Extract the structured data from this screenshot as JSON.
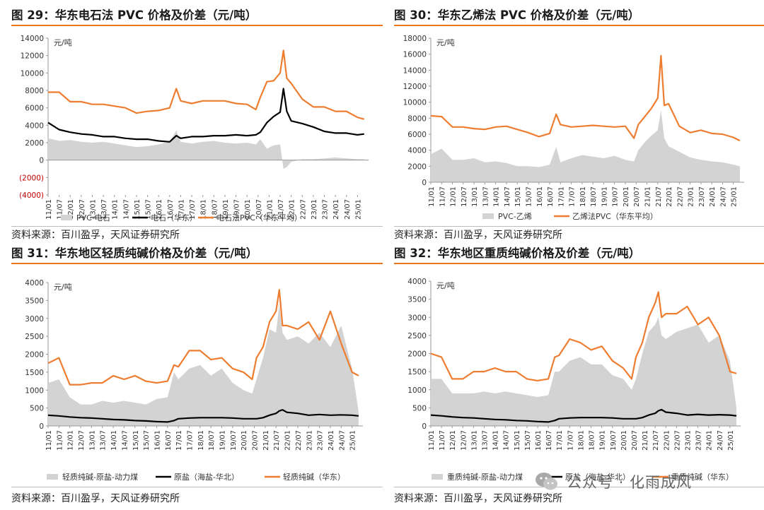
{
  "source_text": "资料来源：百川盈孚，天风证券研究所",
  "watermark": "公众号 · 化雨成风",
  "colors": {
    "orange": "#ED7D31",
    "black": "#000000",
    "gray": "#D3D3D3",
    "negative": "#C00000"
  },
  "chart_data": [
    {
      "type": "area+line",
      "title": "图 29：华东电石法 PVC 价格及价差（元/吨）",
      "unit_label": "元/吨",
      "ylim": [
        -4000,
        14000
      ],
      "yticks": [
        14000,
        12000,
        10000,
        8000,
        6000,
        4000,
        2000,
        0,
        -2000,
        -4000
      ],
      "ytick_labels": [
        "14000",
        "12000",
        "10000",
        "8000",
        "6000",
        "4000",
        "2000",
        "0",
        "(2000)",
        "(4000)"
      ],
      "x_ticks": [
        "11/01",
        "11/07",
        "12/01",
        "12/07",
        "13/01",
        "13/07",
        "14/01",
        "14/07",
        "15/01",
        "15/07",
        "16/01",
        "16/07",
        "17/01",
        "17/07",
        "18/01",
        "18/07",
        "19/01",
        "19/07",
        "20/01",
        "20/07",
        "21/01",
        "21/07",
        "22/01",
        "22/07",
        "23/01",
        "23/07",
        "24/01",
        "24/07",
        "25/01"
      ],
      "x": [
        2011.0,
        2011.5,
        2012.0,
        2012.5,
        2013.0,
        2013.5,
        2014.0,
        2014.5,
        2015.0,
        2015.5,
        2016.0,
        2016.5,
        2016.8,
        2017.0,
        2017.5,
        2018.0,
        2018.5,
        2019.0,
        2019.5,
        2020.0,
        2020.4,
        2020.6,
        2020.9,
        2021.2,
        2021.5,
        2021.65,
        2021.8,
        2022.0,
        2022.5,
        2023.0,
        2023.5,
        2024.0,
        2024.5,
        2025.0,
        2025.3
      ],
      "series": [
        {
          "name": "PVC-电石",
          "kind": "area",
          "values": [
            2500,
            2200,
            2300,
            2100,
            2000,
            2100,
            1900,
            1700,
            1500,
            1600,
            1800,
            2100,
            3400,
            2100,
            1900,
            2100,
            2200,
            2000,
            1900,
            2000,
            1800,
            2400,
            1300,
            1700,
            1800,
            -1000,
            -800,
            -200,
            100,
            100,
            200,
            300,
            200,
            100,
            100
          ]
        },
        {
          "name": "电石（华东）",
          "kind": "line",
          "values": [
            4300,
            3500,
            3200,
            3000,
            2900,
            2700,
            2700,
            2500,
            2400,
            2400,
            2200,
            2100,
            2800,
            2500,
            2700,
            2700,
            2800,
            2800,
            2900,
            2800,
            2900,
            3200,
            4300,
            5000,
            5500,
            8200,
            5600,
            4500,
            4200,
            3800,
            3300,
            3100,
            3100,
            2900,
            3000
          ]
        },
        {
          "name": "电石法PVC（华东平均）",
          "kind": "line",
          "values": [
            7800,
            7800,
            6700,
            6700,
            6400,
            6400,
            6200,
            6000,
            5400,
            5600,
            5700,
            6000,
            8200,
            6800,
            6500,
            6800,
            6800,
            6800,
            6500,
            6400,
            5800,
            7200,
            9000,
            9100,
            10000,
            12600,
            9400,
            8800,
            7000,
            6100,
            6100,
            5600,
            5600,
            4900,
            4700
          ]
        }
      ]
    },
    {
      "type": "area+line",
      "title": "图 30：华东乙烯法 PVC 价格及价差（元/吨）",
      "unit_label": "元/吨",
      "ylim": [
        0,
        18000
      ],
      "yticks": [
        18000,
        16000,
        14000,
        12000,
        10000,
        8000,
        6000,
        4000,
        2000,
        0
      ],
      "ytick_labels": [
        "18000",
        "16000",
        "14000",
        "12000",
        "10000",
        "8000",
        "6000",
        "4000",
        "2000",
        "0"
      ],
      "x_ticks": [
        "11/01",
        "11/07",
        "12/01",
        "12/07",
        "13/01",
        "13/07",
        "14/01",
        "14/07",
        "15/01",
        "15/07",
        "16/01",
        "16/07",
        "17/01",
        "17/07",
        "18/01",
        "18/07",
        "19/01",
        "19/07",
        "20/01",
        "20/07",
        "21/01",
        "21/07",
        "22/01",
        "22/07",
        "23/01",
        "23/07",
        "24/01",
        "24/07",
        "25/01"
      ],
      "x": [
        2011.0,
        2011.5,
        2012.0,
        2012.5,
        2013.0,
        2013.5,
        2014.0,
        2014.5,
        2015.0,
        2015.5,
        2016.0,
        2016.5,
        2016.8,
        2017.0,
        2017.5,
        2018.0,
        2018.5,
        2019.0,
        2019.5,
        2020.0,
        2020.4,
        2020.6,
        2020.9,
        2021.2,
        2021.5,
        2021.65,
        2021.8,
        2022.0,
        2022.5,
        2023.0,
        2023.5,
        2024.0,
        2024.5,
        2025.0,
        2025.3
      ],
      "series": [
        {
          "name": "PVC-乙烯",
          "kind": "area",
          "values": [
            3500,
            4200,
            2800,
            2800,
            3000,
            2500,
            2600,
            2400,
            2000,
            2000,
            1900,
            2200,
            4400,
            2500,
            3000,
            3400,
            3200,
            3000,
            3300,
            2800,
            2600,
            4000,
            5000,
            5800,
            6500,
            9000,
            5500,
            4500,
            3800,
            3100,
            2800,
            2600,
            2500,
            2200,
            2000
          ]
        },
        {
          "name": "乙烯法PVC（华东平均）",
          "kind": "line",
          "values": [
            8300,
            8200,
            6900,
            6900,
            6700,
            6600,
            6900,
            7000,
            6600,
            6200,
            5700,
            6100,
            8500,
            7200,
            6900,
            7000,
            7100,
            7000,
            6900,
            7000,
            5500,
            7200,
            8200,
            9200,
            10500,
            15800,
            9600,
            9800,
            7000,
            6200,
            6500,
            6100,
            6000,
            5600,
            5200
          ]
        }
      ]
    },
    {
      "type": "area+line",
      "title": "图 31：华东地区轻质纯碱价格及价差（元/吨）",
      "unit_label": "元/吨",
      "ylim": [
        0,
        4000
      ],
      "yticks": [
        4000,
        3500,
        3000,
        2500,
        2000,
        1500,
        1000,
        500,
        0
      ],
      "ytick_labels": [
        "4000",
        "3500",
        "3000",
        "2500",
        "2000",
        "1500",
        "1000",
        "500",
        "0"
      ],
      "x_ticks": [
        "11/01",
        "11/07",
        "12/01",
        "12/07",
        "13/01",
        "13/07",
        "14/01",
        "14/07",
        "15/01",
        "15/07",
        "16/01",
        "16/07",
        "17/01",
        "17/07",
        "18/01",
        "18/07",
        "19/01",
        "19/07",
        "20/01",
        "20/07",
        "21/01",
        "21/07",
        "22/01",
        "22/07",
        "23/01",
        "23/07",
        "24/01",
        "24/07",
        "25/01"
      ],
      "x": [
        2011.0,
        2011.5,
        2012.0,
        2012.5,
        2013.0,
        2013.5,
        2014.0,
        2014.5,
        2015.0,
        2015.5,
        2016.0,
        2016.5,
        2016.8,
        2017.0,
        2017.5,
        2018.0,
        2018.5,
        2019.0,
        2019.5,
        2020.0,
        2020.4,
        2020.6,
        2020.9,
        2021.2,
        2021.5,
        2021.65,
        2021.8,
        2022.0,
        2022.5,
        2023.0,
        2023.5,
        2024.0,
        2024.5,
        2025.0,
        2025.3
      ],
      "series": [
        {
          "name": "轻质纯碱-原盐-动力煤",
          "kind": "area",
          "values": [
            1200,
            1300,
            800,
            600,
            600,
            700,
            650,
            700,
            650,
            600,
            750,
            800,
            1500,
            1300,
            1600,
            1700,
            1400,
            1600,
            1200,
            1000,
            900,
            1300,
            1900,
            2700,
            2600,
            3400,
            2600,
            2400,
            2500,
            2300,
            2600,
            2200,
            2800,
            1600,
            400
          ]
        },
        {
          "name": "原盐（海盐-华北）",
          "kind": "line",
          "values": [
            300,
            280,
            250,
            230,
            220,
            200,
            180,
            170,
            150,
            140,
            120,
            110,
            150,
            200,
            220,
            230,
            230,
            230,
            220,
            200,
            200,
            200,
            230,
            300,
            350,
            420,
            450,
            380,
            350,
            300,
            320,
            300,
            310,
            300,
            280
          ]
        },
        {
          "name": "轻质纯碱（华东）",
          "kind": "line",
          "values": [
            1750,
            1900,
            1150,
            1150,
            1200,
            1200,
            1400,
            1300,
            1400,
            1250,
            1200,
            1250,
            1700,
            1650,
            2100,
            2100,
            1850,
            1900,
            1600,
            1500,
            1300,
            1900,
            2200,
            2900,
            3200,
            3800,
            2800,
            2800,
            2700,
            2900,
            2400,
            3200,
            2300,
            1500,
            1400
          ]
        }
      ]
    },
    {
      "type": "area+line",
      "title": "图 32：华东地区重质纯碱价格及价差（元/吨）",
      "unit_label": "元/吨",
      "ylim": [
        0,
        4000
      ],
      "yticks": [
        4000,
        3500,
        3000,
        2500,
        2000,
        1500,
        1000,
        500,
        0
      ],
      "ytick_labels": [
        "4000",
        "3500",
        "3000",
        "2500",
        "2000",
        "1500",
        "1000",
        "500",
        "0"
      ],
      "x_ticks": [
        "11/01",
        "11/07",
        "12/01",
        "12/07",
        "13/01",
        "13/07",
        "14/01",
        "14/07",
        "15/01",
        "15/07",
        "16/01",
        "16/07",
        "17/01",
        "17/07",
        "18/01",
        "18/07",
        "19/01",
        "19/07",
        "20/01",
        "20/07",
        "21/01",
        "21/07",
        "22/01",
        "22/07",
        "23/01",
        "23/07",
        "24/01",
        "24/07",
        "25/01"
      ],
      "x": [
        2011.0,
        2011.5,
        2012.0,
        2012.5,
        2013.0,
        2013.5,
        2014.0,
        2014.5,
        2015.0,
        2015.5,
        2016.0,
        2016.5,
        2016.8,
        2017.0,
        2017.5,
        2018.0,
        2018.5,
        2019.0,
        2019.5,
        2020.0,
        2020.4,
        2020.6,
        2020.9,
        2021.2,
        2021.5,
        2021.65,
        2021.8,
        2022.0,
        2022.5,
        2023.0,
        2023.5,
        2024.0,
        2024.5,
        2025.0,
        2025.3
      ],
      "series": [
        {
          "name": "重质纯碱-原盐-动力煤",
          "kind": "area",
          "values": [
            1300,
            1300,
            900,
            900,
            900,
            950,
            900,
            950,
            900,
            850,
            800,
            850,
            1500,
            1500,
            1800,
            1900,
            1700,
            1700,
            1400,
            1300,
            1000,
            1300,
            2000,
            2600,
            2800,
            3000,
            2500,
            2400,
            2600,
            2700,
            2800,
            2300,
            2500,
            1800,
            500
          ]
        },
        {
          "name": "原盐（海盐-华北）",
          "kind": "line",
          "values": [
            300,
            280,
            250,
            230,
            220,
            200,
            180,
            170,
            150,
            140,
            120,
            110,
            150,
            200,
            220,
            230,
            230,
            230,
            220,
            200,
            200,
            200,
            230,
            300,
            350,
            420,
            450,
            380,
            350,
            300,
            320,
            300,
            310,
            300,
            280
          ]
        },
        {
          "name": "重质纯碱（华东）",
          "kind": "line",
          "values": [
            2000,
            1900,
            1300,
            1300,
            1500,
            1500,
            1600,
            1500,
            1500,
            1300,
            1250,
            1300,
            1900,
            1950,
            2400,
            2300,
            2100,
            2200,
            1800,
            1600,
            1300,
            1900,
            2300,
            3000,
            3400,
            3700,
            3000,
            3100,
            3100,
            3300,
            2800,
            3000,
            2500,
            1500,
            1450
          ]
        }
      ]
    }
  ]
}
